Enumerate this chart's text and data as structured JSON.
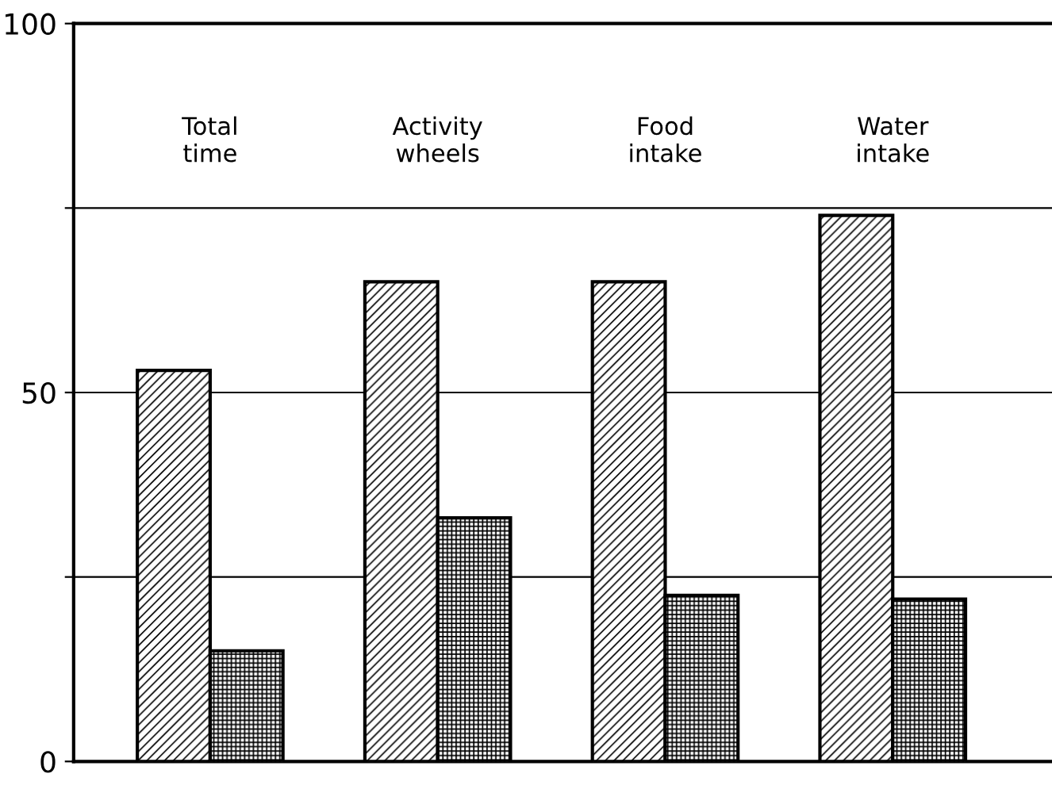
{
  "chart_data": {
    "type": "bar",
    "categories": [
      "Total\ntime",
      "Activity\nwheels",
      "Food\nintake",
      "Water\nintake"
    ],
    "series": [
      {
        "color": "#000000",
        "values": [
          53,
          65,
          65,
          74
        ]
      },
      {
        "color": "#000000",
        "values": [
          15,
          33,
          22.5,
          22
        ]
      }
    ],
    "ylim": [
      0,
      100
    ],
    "yticks": [
      0,
      {
        "value": 25,
        "label": null
      },
      50,
      {
        "value": 75,
        "label": null
      },
      100
    ],
    "grid": "y",
    "legend": false
  }
}
